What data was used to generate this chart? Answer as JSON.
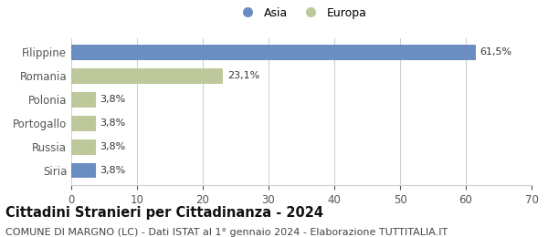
{
  "categories": [
    "Filippine",
    "Romania",
    "Polonia",
    "Portogallo",
    "Russia",
    "Siria"
  ],
  "values": [
    61.5,
    23.1,
    3.8,
    3.8,
    3.8,
    3.8
  ],
  "labels": [
    "61,5%",
    "23,1%",
    "3,8%",
    "3,8%",
    "3,8%",
    "3,8%"
  ],
  "colors": [
    "#6b8ec2",
    "#bdc99a",
    "#bdc99a",
    "#bdc99a",
    "#bdc99a",
    "#6b8ec2"
  ],
  "legend_items": [
    {
      "label": "Asia",
      "color": "#6b8ec2"
    },
    {
      "label": "Europa",
      "color": "#bdc99a"
    }
  ],
  "xlim": [
    0,
    70
  ],
  "xticks": [
    0,
    10,
    20,
    30,
    40,
    50,
    60,
    70
  ],
  "title": "Cittadini Stranieri per Cittadinanza - 2024",
  "subtitle": "COMUNE DI MARGNO (LC) - Dati ISTAT al 1° gennaio 2024 - Elaborazione TUTTITALIA.IT",
  "title_fontsize": 10.5,
  "subtitle_fontsize": 8.0,
  "label_fontsize": 8,
  "ytick_fontsize": 8.5,
  "xtick_fontsize": 8.5,
  "background_color": "#ffffff",
  "grid_color": "#d0d0d0"
}
